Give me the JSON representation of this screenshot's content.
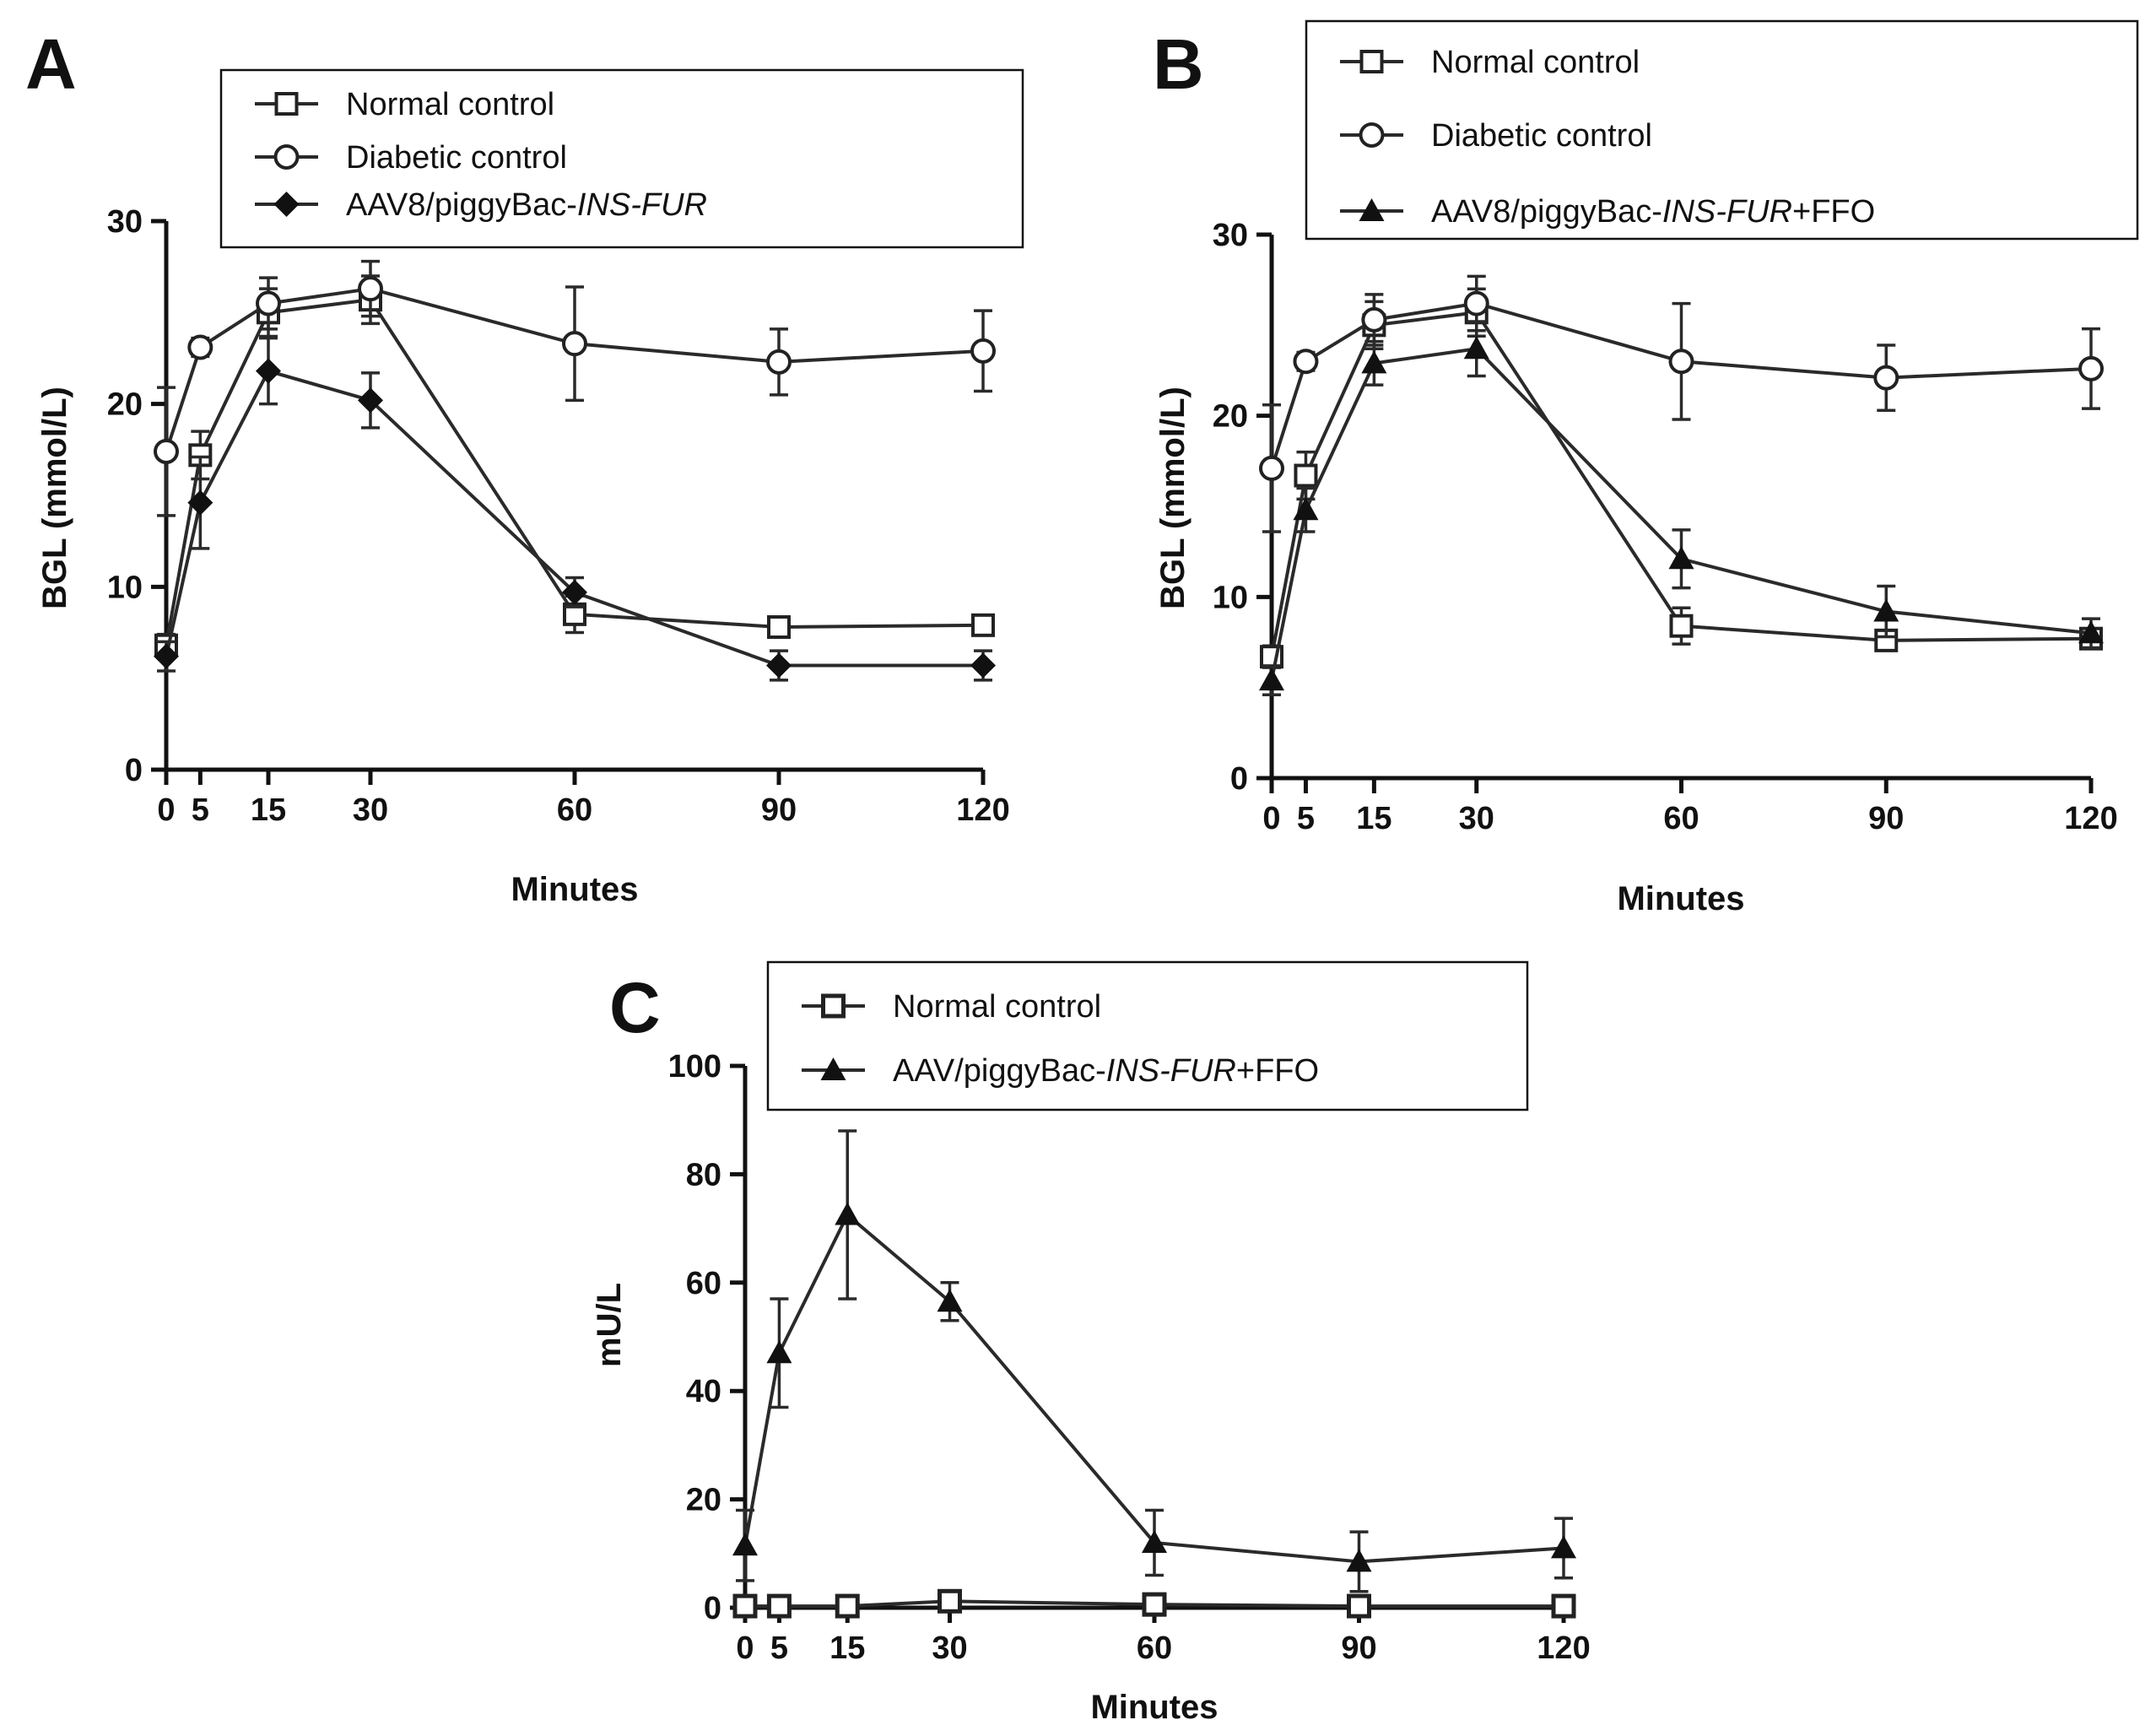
{
  "figure": {
    "panels": [
      "A",
      "B",
      "C"
    ]
  },
  "chart_data": [
    {
      "panel": "A",
      "type": "line",
      "title": "",
      "xlabel": "Minutes",
      "ylabel": "BGL (mmol/L)",
      "x": [
        0,
        5,
        15,
        30,
        60,
        90,
        120
      ],
      "xticks": [
        0,
        5,
        15,
        30,
        60,
        90,
        120
      ],
      "yticks": [
        0,
        10,
        20,
        30
      ],
      "xlim": [
        0,
        120
      ],
      "ylim": [
        0,
        30
      ],
      "grid": false,
      "legend_position": "top",
      "series": [
        {
          "name": "Normal control",
          "marker": "square-open",
          "values": [
            6.8,
            17.2,
            25.0,
            25.7,
            8.5,
            7.8,
            7.9
          ],
          "errors": [
            0.6,
            1.3,
            1.3,
            1.3,
            1.0,
            0.4,
            0.4
          ]
        },
        {
          "name": "Diabetic control",
          "marker": "circle-open",
          "values": [
            17.4,
            23.1,
            25.5,
            26.3,
            23.3,
            22.3,
            22.9
          ],
          "errors": [
            3.5,
            0.5,
            1.4,
            1.5,
            3.1,
            1.8,
            2.2
          ]
        },
        {
          "name": "AAV8/piggyBac-",
          "name_italic": "INS-FUR",
          "name_suffix": "",
          "marker": "diamond-filled",
          "values": [
            6.2,
            14.6,
            21.8,
            20.2,
            9.7,
            5.7,
            5.7
          ],
          "errors": [
            0.8,
            2.5,
            1.8,
            1.5,
            0.8,
            0.8,
            0.8
          ]
        }
      ]
    },
    {
      "panel": "B",
      "type": "line",
      "title": "",
      "xlabel": "Minutes",
      "ylabel": "BGL (mmol/L)",
      "x": [
        0,
        5,
        15,
        30,
        60,
        90,
        120
      ],
      "xticks": [
        0,
        5,
        15,
        30,
        60,
        90,
        120
      ],
      "yticks": [
        0,
        10,
        20,
        30
      ],
      "xlim": [
        0,
        120
      ],
      "ylim": [
        0,
        30
      ],
      "grid": false,
      "legend_position": "top",
      "series": [
        {
          "name": "Normal control",
          "marker": "square-open",
          "values": [
            6.7,
            16.7,
            25.0,
            25.7,
            8.4,
            7.6,
            7.7
          ],
          "errors": [
            0.6,
            1.3,
            1.3,
            1.3,
            1.0,
            0.4,
            0.4
          ]
        },
        {
          "name": "Diabetic control",
          "marker": "circle-open",
          "values": [
            17.1,
            23.0,
            25.3,
            26.2,
            23.0,
            22.1,
            22.6
          ],
          "errors": [
            3.5,
            0.5,
            1.4,
            1.5,
            3.2,
            1.8,
            2.2
          ]
        },
        {
          "name": "AAV8/piggyBac-",
          "name_italic": "INS-FUR",
          "name_suffix": "+FFO",
          "marker": "triangle-filled",
          "values": [
            5.4,
            14.8,
            22.9,
            23.7,
            12.1,
            9.2,
            8.0
          ],
          "errors": [
            0.8,
            1.2,
            1.2,
            1.5,
            1.6,
            1.4,
            0.8
          ]
        }
      ]
    },
    {
      "panel": "C",
      "type": "line",
      "title": "",
      "xlabel": "Minutes",
      "ylabel": "mU/L",
      "x": [
        0,
        5,
        15,
        30,
        60,
        90,
        120
      ],
      "xticks": [
        0,
        5,
        15,
        30,
        60,
        90,
        120
      ],
      "yticks": [
        0,
        20,
        40,
        60,
        80,
        100
      ],
      "xlim": [
        0,
        120
      ],
      "ylim": [
        0,
        100
      ],
      "grid": false,
      "legend_position": "top",
      "series": [
        {
          "name": "Normal control",
          "marker": "square-open-bold",
          "values": [
            0.3,
            0.3,
            0.3,
            1.2,
            0.6,
            0.3,
            0.3
          ],
          "errors": [
            0.3,
            0.3,
            0.3,
            0.6,
            0.3,
            0.3,
            0.3
          ]
        },
        {
          "name": "AAV/piggyBac-",
          "name_italic": "INS-FUR",
          "name_suffix": "+FFO",
          "marker": "triangle-filled",
          "values": [
            11.5,
            47.0,
            72.5,
            56.5,
            12.0,
            8.5,
            11.0
          ],
          "errors": [
            6.5,
            10.0,
            15.5,
            3.5,
            6.0,
            5.5,
            5.5
          ]
        }
      ]
    }
  ]
}
